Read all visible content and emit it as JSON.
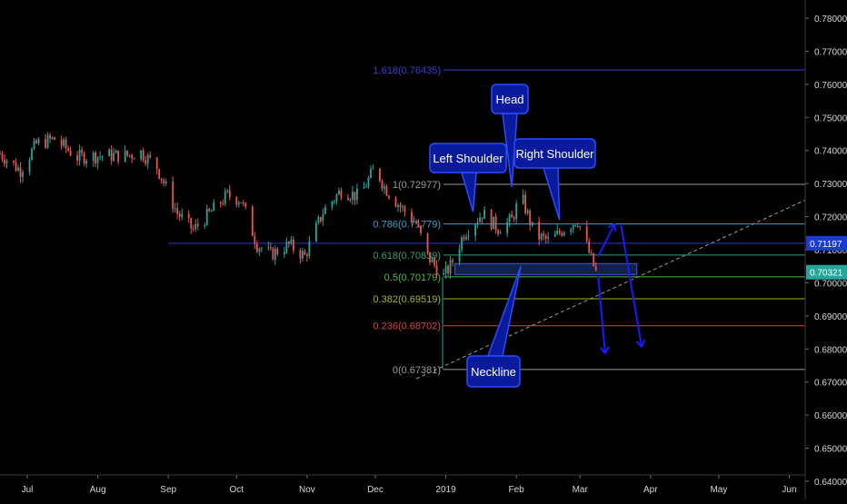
{
  "chart_data": {
    "type": "candlestick",
    "x_range": [
      "2018-06-19",
      "2019-06-08"
    ],
    "ylim": [
      0.6345,
      0.7855
    ],
    "x_ticks": [
      {
        "label": "Jul",
        "date": "2018-07-01"
      },
      {
        "label": "Aug",
        "date": "2018-08-01"
      },
      {
        "label": "Sep",
        "date": "2018-09-01"
      },
      {
        "label": "Oct",
        "date": "2018-10-01"
      },
      {
        "label": "Nov",
        "date": "2018-11-01"
      },
      {
        "label": "Dec",
        "date": "2018-12-01"
      },
      {
        "label": "2019",
        "date": "2019-01-01"
      },
      {
        "label": "Feb",
        "date": "2019-02-01"
      },
      {
        "label": "Mar",
        "date": "2019-03-01"
      },
      {
        "label": "Apr",
        "date": "2019-04-01"
      },
      {
        "label": "May",
        "date": "2019-05-01"
      },
      {
        "label": "Jun",
        "date": "2019-06-01"
      }
    ],
    "y_ticks": [
      "0.78000",
      "0.77000",
      "0.76000",
      "0.75000",
      "0.74000",
      "0.73000",
      "0.72000",
      "0.71000",
      "0.70000",
      "0.69000",
      "0.68000",
      "0.67000",
      "0.66000",
      "0.65000",
      "0.64000"
    ],
    "price_path": [
      [
        "2018-06-19",
        0.739
      ],
      [
        "2018-06-28",
        0.734
      ],
      [
        "2018-07-05",
        0.742
      ],
      [
        "2018-07-13",
        0.7435
      ],
      [
        "2018-07-23",
        0.738
      ],
      [
        "2018-08-05",
        0.7385
      ],
      [
        "2018-08-14",
        0.7385
      ],
      [
        "2018-08-20",
        0.7395
      ],
      [
        "2018-08-27",
        0.735
      ],
      [
        "2018-09-05",
        0.721
      ],
      [
        "2018-09-12",
        0.716
      ],
      [
        "2018-09-17",
        0.7195
      ],
      [
        "2018-09-27",
        0.7265
      ],
      [
        "2018-10-03",
        0.725
      ],
      [
        "2018-10-10",
        0.7115
      ],
      [
        "2018-10-16",
        0.7085
      ],
      [
        "2018-10-24",
        0.7115
      ],
      [
        "2018-10-31",
        0.708
      ],
      [
        "2018-11-08",
        0.7215
      ],
      [
        "2018-11-16",
        0.728
      ],
      [
        "2018-11-24",
        0.726
      ],
      [
        "2018-12-01",
        0.735
      ],
      [
        "2018-12-05",
        0.729
      ],
      [
        "2018-12-12",
        0.723
      ],
      [
        "2018-12-19",
        0.718
      ],
      [
        "2018-12-24",
        0.708
      ],
      [
        "2018-12-31",
        0.702
      ],
      [
        "2019-01-03",
        0.705
      ],
      [
        "2019-01-09",
        0.715
      ],
      [
        "2019-01-17",
        0.721
      ],
      [
        "2019-01-24",
        0.7165
      ],
      [
        "2019-01-30",
        0.719
      ],
      [
        "2019-02-03",
        0.7265
      ],
      [
        "2019-02-09",
        0.7145
      ],
      [
        "2019-02-16",
        0.7125
      ],
      [
        "2019-02-22",
        0.7165
      ],
      [
        "2019-02-28",
        0.719
      ],
      [
        "2019-03-03",
        0.713
      ],
      [
        "2019-03-08",
        0.7032
      ]
    ],
    "fibonacci": [
      {
        "label": "1.618(0.76435)",
        "level": 1.618,
        "value": 0.76435,
        "color": "#3d3dd4"
      },
      {
        "label": "1(0.72977)",
        "level": 1,
        "value": 0.72977,
        "color": "#9a9a9a"
      },
      {
        "label": "0.786(0.71779)",
        "level": 0.786,
        "value": 0.71779,
        "color": "#3ea1c6"
      },
      {
        "label": "0.618(0.70839)",
        "level": 0.618,
        "value": 0.70839,
        "color": "#33a176"
      },
      {
        "label": "0.5(0.70179)",
        "level": 0.5,
        "value": 0.70179,
        "color": "#55b84a"
      },
      {
        "label": "0.382(0.69519)",
        "level": 0.382,
        "value": 0.69519,
        "color": "#a0b52c"
      },
      {
        "label": "0.236(0.68702)",
        "level": 0.236,
        "value": 0.68702,
        "color": "#d64545"
      },
      {
        "label": "0(0.67381)",
        "level": 0,
        "value": 0.67381,
        "color": "#9a9a9a"
      }
    ],
    "horizontal_lines": [
      {
        "value": 0.71197,
        "label": "0.71197",
        "color": "#1a3bd6"
      }
    ],
    "last_price": {
      "value": 0.70321,
      "label": "0.70321",
      "color": "#26a69a"
    },
    "zone": {
      "from": "2019-01-05",
      "to": "2019-03-26",
      "low": 0.7025,
      "high": 0.7058
    },
    "annotations": [
      {
        "text": "Head",
        "anchor_date": "2019-01-30",
        "anchor_value": 0.729
      },
      {
        "text": "Left Shoulder",
        "anchor_date": "2019-01-13",
        "anchor_value": 0.7215
      },
      {
        "text": "Right Shoulder",
        "anchor_date": "2019-02-20",
        "anchor_value": 0.719
      },
      {
        "text": "Neckline",
        "anchor_date": "2019-02-03",
        "anchor_value": 0.705
      }
    ],
    "trendline": {
      "from": [
        "2018-12-19",
        0.671
      ],
      "to": [
        "2019-06-08",
        0.725
      ]
    },
    "projection_arrows": [
      {
        "from": [
          "2019-03-09",
          0.702
        ],
        "to": [
          "2019-03-12",
          0.679
        ]
      },
      {
        "from": [
          "2019-03-09",
          0.708
        ],
        "to": [
          "2019-03-16",
          0.7175
        ]
      },
      {
        "from": [
          "2019-03-19",
          0.7175
        ],
        "to": [
          "2019-03-28",
          0.681
        ]
      }
    ],
    "colors": {
      "up": "#26a69a",
      "down": "#ef5350",
      "background": "#000000",
      "text": "#d6d6d6"
    },
    "grid": false
  }
}
